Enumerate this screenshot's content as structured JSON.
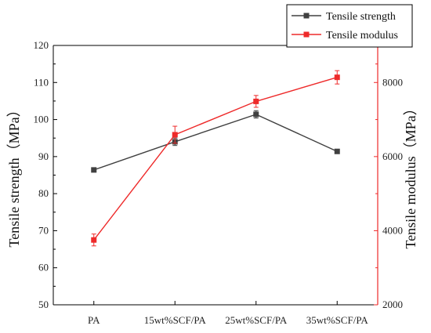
{
  "chart_data": {
    "type": "line",
    "categories": [
      "PA",
      "15wt%SCF/PA",
      "25wt%SCF/PA",
      "35wt%SCF/PA"
    ],
    "series": [
      {
        "name": "Tensile strength",
        "axis": "left",
        "color": "#404040",
        "marker": "square",
        "values": [
          86.4,
          94.0,
          101.4,
          91.4
        ],
        "errors": [
          0,
          1.0,
          1.0,
          0
        ]
      },
      {
        "name": "Tensile modulus",
        "axis": "right",
        "color": "#ee2a2a",
        "marker": "square",
        "values": [
          3750,
          6590,
          7490,
          8140
        ],
        "errors": [
          160,
          230,
          160,
          180
        ]
      }
    ],
    "ylabel": "Tensile strength（MPa）",
    "y2label": "Tensile modulus（MPa）",
    "ylim": [
      50,
      120
    ],
    "yticks": [
      50,
      60,
      70,
      80,
      90,
      100,
      110,
      120
    ],
    "y2lim": [
      2000,
      9000
    ],
    "y2ticks": [
      2000,
      4000,
      6000,
      8000
    ],
    "grid": false,
    "legend_position": "top-right",
    "left_axis_color": "#000000",
    "right_axis_color": "#ee2a2a"
  }
}
